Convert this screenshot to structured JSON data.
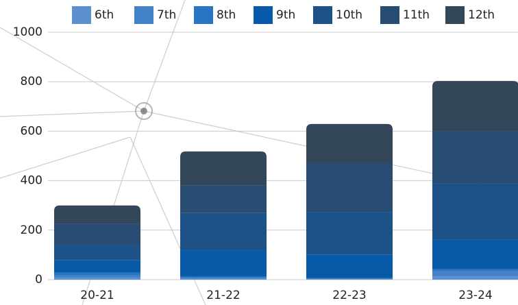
{
  "chart_data": {
    "type": "stacked_bar",
    "categories": [
      "20-21",
      "21-22",
      "22-23",
      "23-24"
    ],
    "series": [
      {
        "name": "6th",
        "color": "#5b8fd0",
        "values": [
          8,
          4,
          2,
          14
        ]
      },
      {
        "name": "7th",
        "color": "#4381c9",
        "values": [
          10,
          4,
          2,
          22
        ]
      },
      {
        "name": "8th",
        "color": "#2a74c4",
        "values": [
          10,
          4,
          2,
          6
        ]
      },
      {
        "name": "9th",
        "color": "#075aa8",
        "values": [
          50,
          107,
          96,
          119
        ]
      },
      {
        "name": "10th",
        "color": "#1d5289",
        "values": [
          62,
          152,
          172,
          227
        ]
      },
      {
        "name": "11th",
        "color": "#284c72",
        "values": [
          87,
          111,
          197,
          213
        ]
      },
      {
        "name": "12th",
        "color": "#33465a",
        "values": [
          73,
          136,
          158,
          202
        ]
      }
    ],
    "ylim": [
      0,
      1000
    ],
    "yticks": [
      0,
      200,
      400,
      600,
      800,
      1000
    ],
    "grid": true
  }
}
